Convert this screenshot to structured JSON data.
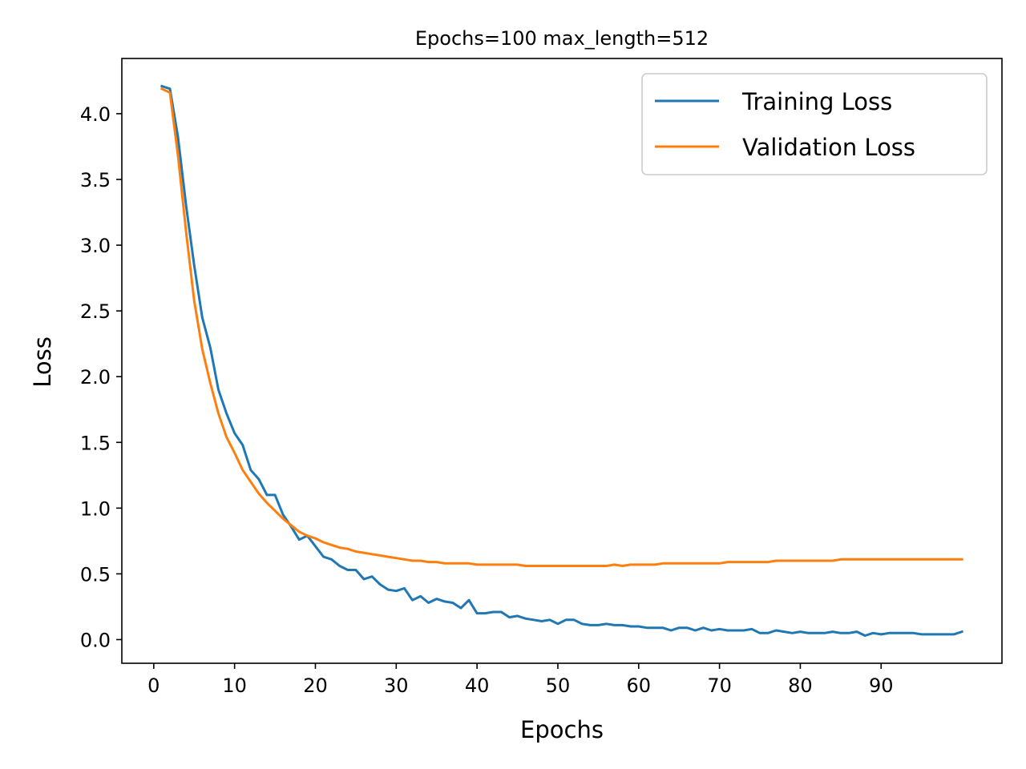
{
  "chart_data": {
    "type": "line",
    "title": "Epochs=100   max_length=512",
    "xlabel": "Epochs",
    "ylabel": "Loss",
    "xlim": [
      -3.95,
      104.95
    ],
    "ylim": [
      -0.18,
      4.42
    ],
    "xticks": [
      0,
      10,
      20,
      30,
      40,
      50,
      60,
      70,
      80,
      90
    ],
    "yticks": [
      0.0,
      0.5,
      1.0,
      1.5,
      2.0,
      2.5,
      3.0,
      3.5,
      4.0
    ],
    "grid": false,
    "legend_position": "upper right",
    "x": [
      1,
      2,
      3,
      4,
      5,
      6,
      7,
      8,
      9,
      10,
      11,
      12,
      13,
      14,
      15,
      16,
      17,
      18,
      19,
      20,
      21,
      22,
      23,
      24,
      25,
      26,
      27,
      28,
      29,
      30,
      31,
      32,
      33,
      34,
      35,
      36,
      37,
      38,
      39,
      40,
      41,
      42,
      43,
      44,
      45,
      46,
      47,
      48,
      49,
      50,
      51,
      52,
      53,
      54,
      55,
      56,
      57,
      58,
      59,
      60,
      61,
      62,
      63,
      64,
      65,
      66,
      67,
      68,
      69,
      70,
      71,
      72,
      73,
      74,
      75,
      76,
      77,
      78,
      79,
      80,
      81,
      82,
      83,
      84,
      85,
      86,
      87,
      88,
      89,
      90,
      91,
      92,
      93,
      94,
      95,
      96,
      97,
      98,
      99,
      100
    ],
    "series": [
      {
        "name": "Training Loss",
        "color": "#1f77b4",
        "values": [
          4.21,
          4.19,
          3.82,
          3.3,
          2.85,
          2.45,
          2.22,
          1.9,
          1.72,
          1.57,
          1.48,
          1.29,
          1.22,
          1.1,
          1.1,
          0.95,
          0.86,
          0.76,
          0.79,
          0.71,
          0.63,
          0.61,
          0.56,
          0.53,
          0.53,
          0.46,
          0.48,
          0.42,
          0.38,
          0.37,
          0.39,
          0.3,
          0.33,
          0.28,
          0.31,
          0.29,
          0.28,
          0.24,
          0.3,
          0.2,
          0.2,
          0.21,
          0.21,
          0.17,
          0.18,
          0.16,
          0.15,
          0.14,
          0.15,
          0.12,
          0.15,
          0.15,
          0.12,
          0.11,
          0.11,
          0.12,
          0.11,
          0.11,
          0.1,
          0.1,
          0.09,
          0.09,
          0.09,
          0.07,
          0.09,
          0.09,
          0.07,
          0.09,
          0.07,
          0.08,
          0.07,
          0.07,
          0.07,
          0.08,
          0.05,
          0.05,
          0.07,
          0.06,
          0.05,
          0.06,
          0.05,
          0.05,
          0.05,
          0.06,
          0.05,
          0.05,
          0.06,
          0.03,
          0.05,
          0.04,
          0.05,
          0.05,
          0.05,
          0.05,
          0.04,
          0.04,
          0.04,
          0.04,
          0.04,
          0.06
        ]
      },
      {
        "name": "Validation Loss",
        "color": "#ff7f0e",
        "values": [
          4.19,
          4.16,
          3.68,
          3.1,
          2.58,
          2.21,
          1.95,
          1.72,
          1.54,
          1.42,
          1.29,
          1.2,
          1.11,
          1.04,
          0.98,
          0.92,
          0.87,
          0.82,
          0.79,
          0.77,
          0.74,
          0.72,
          0.7,
          0.69,
          0.67,
          0.66,
          0.65,
          0.64,
          0.63,
          0.62,
          0.61,
          0.6,
          0.6,
          0.59,
          0.59,
          0.58,
          0.58,
          0.58,
          0.58,
          0.57,
          0.57,
          0.57,
          0.57,
          0.57,
          0.57,
          0.56,
          0.56,
          0.56,
          0.56,
          0.56,
          0.56,
          0.56,
          0.56,
          0.56,
          0.56,
          0.56,
          0.57,
          0.56,
          0.57,
          0.57,
          0.57,
          0.57,
          0.58,
          0.58,
          0.58,
          0.58,
          0.58,
          0.58,
          0.58,
          0.58,
          0.59,
          0.59,
          0.59,
          0.59,
          0.59,
          0.59,
          0.6,
          0.6,
          0.6,
          0.6,
          0.6,
          0.6,
          0.6,
          0.6,
          0.61,
          0.61,
          0.61,
          0.61,
          0.61,
          0.61,
          0.61,
          0.61,
          0.61,
          0.61,
          0.61,
          0.61,
          0.61,
          0.61,
          0.61,
          0.61
        ]
      }
    ]
  }
}
